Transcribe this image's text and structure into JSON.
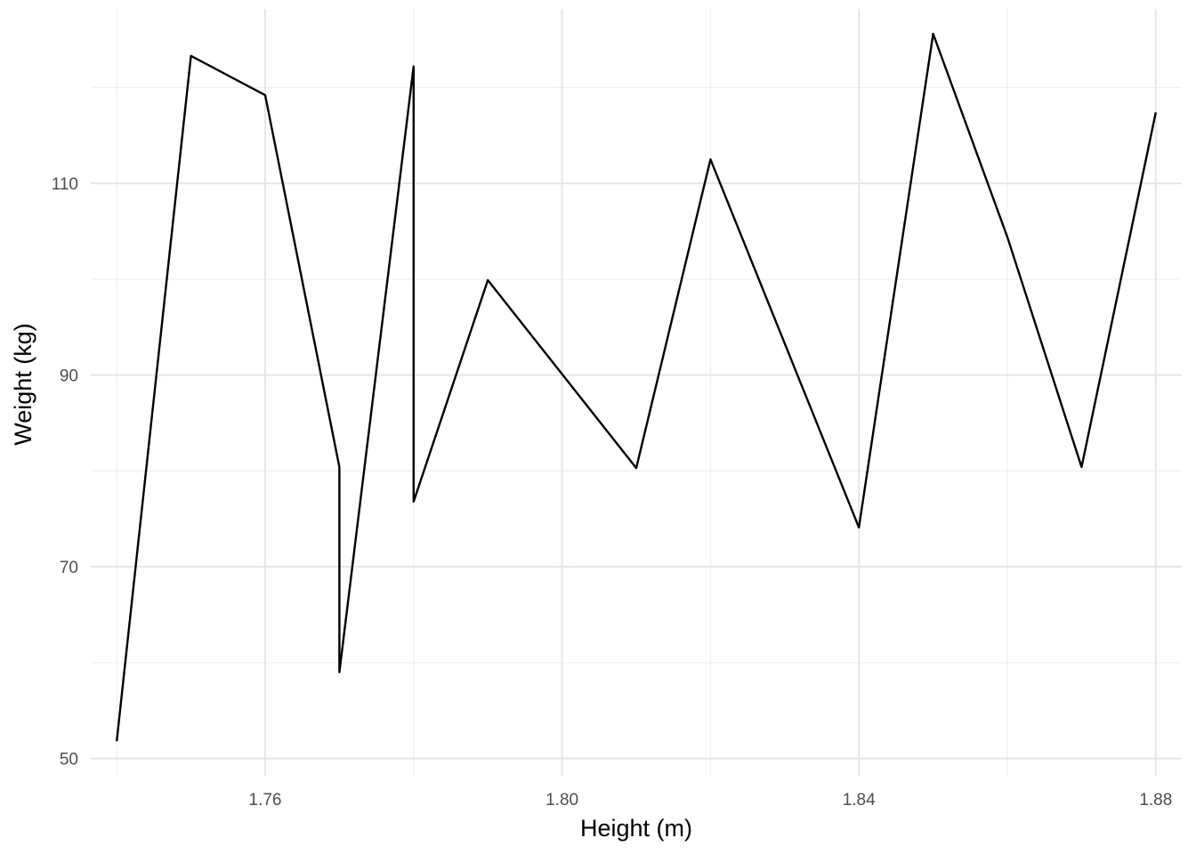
{
  "chart_data": {
    "type": "line",
    "title": "",
    "xlabel": "Height (m)",
    "ylabel": "Weight (kg)",
    "xlim": [
      1.7365,
      1.8835
    ],
    "ylim": [
      48.2,
      128.2
    ],
    "x_ticks": [
      1.76,
      1.8,
      1.84,
      1.88
    ],
    "x_tick_labels": [
      "1.76",
      "1.80",
      "1.84",
      "1.88"
    ],
    "y_ticks": [
      50,
      70,
      90,
      110
    ],
    "y_tick_labels": [
      "50",
      "70",
      "90",
      "110"
    ],
    "grid": true,
    "legend": "none",
    "line_color": "#000000",
    "x": [
      1.74,
      1.75,
      1.76,
      1.77,
      1.77,
      1.78,
      1.78,
      1.79,
      1.81,
      1.82,
      1.84,
      1.85,
      1.86,
      1.87,
      1.88
    ],
    "y": [
      51.8,
      123.3,
      119.2,
      80.4,
      59.0,
      122.2,
      76.8,
      99.9,
      80.3,
      112.5,
      74.1,
      125.6,
      104.4,
      80.4,
      117.4
    ]
  }
}
